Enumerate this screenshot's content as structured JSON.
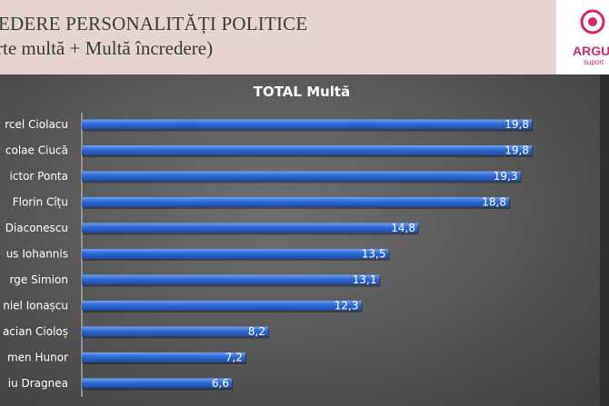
{
  "header": {
    "title_line1": "EDERE PERSONALITĂȚI POLITICE",
    "title_line2": "rte multă + Multă încredere)",
    "logo_text": "ARGU",
    "logo_tagline": "suport"
  },
  "chart_data": {
    "type": "bar",
    "orientation": "horizontal",
    "title": "TOTAL Multă",
    "categories": [
      "rcel Ciolacu",
      "colae Ciucă",
      "ictor Ponta",
      "Florin Cîțu",
      "Diaconescu",
      "us Iohannis",
      "rge Simion",
      "niel Ionașcu",
      "acian Cioloș",
      "men Hunor",
      "iu Dragnea"
    ],
    "values": [
      19.8,
      19.8,
      19.3,
      18.8,
      14.8,
      13.5,
      13.1,
      12.3,
      8.2,
      7.2,
      6.6
    ],
    "value_labels": [
      "19,8",
      "19,8",
      "19,3",
      "18,8",
      "14,8",
      "13,5",
      "13,1",
      "12,3",
      "8,2",
      "7,2",
      "6,6"
    ],
    "bar_color": "#2f6ad4",
    "grid": false,
    "legend": "none"
  }
}
